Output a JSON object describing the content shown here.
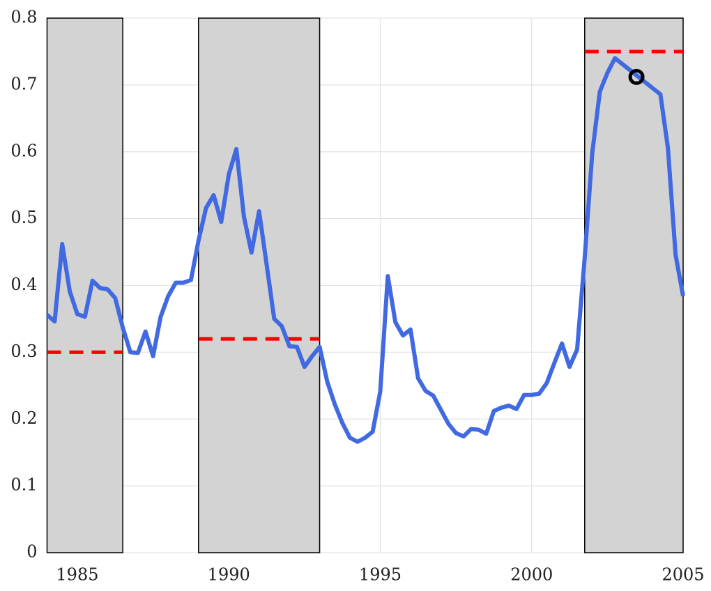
{
  "chart_data": {
    "type": "line",
    "xlim": [
      1984,
      2005
    ],
    "ylim": [
      0,
      0.8
    ],
    "xticks": [
      1985,
      1990,
      1995,
      2000,
      2005
    ],
    "yticks": [
      0,
      0.1,
      0.2,
      0.3,
      0.4,
      0.5,
      0.6,
      0.7,
      0.8
    ],
    "grid": true,
    "shaded_regions": [
      [
        1984,
        1986.5
      ],
      [
        1989,
        1993
      ],
      [
        2001.75,
        2005
      ]
    ],
    "shade_color": "#d3d3d3",
    "reference_lines": [
      {
        "x": [
          1984,
          1986.5
        ],
        "y": 0.3
      },
      {
        "x": [
          1989,
          1993
        ],
        "y": 0.32
      },
      {
        "x": [
          2001.75,
          2005
        ],
        "y": 0.75
      }
    ],
    "reference_color": "#ff0000",
    "marker": {
      "x": 2003.46,
      "y": 0.712,
      "color": "#000000"
    },
    "series": [
      {
        "color": "#4169e1",
        "x": [
          1984.0,
          1984.25,
          1984.5,
          1984.75,
          1985.0,
          1985.25,
          1985.5,
          1985.75,
          1986.0,
          1986.25,
          1986.5,
          1986.75,
          1987.0,
          1987.25,
          1987.5,
          1987.75,
          1988.0,
          1988.25,
          1988.5,
          1988.75,
          1989.0,
          1989.25,
          1989.5,
          1989.75,
          1990.0,
          1990.25,
          1990.5,
          1990.75,
          1991.0,
          1991.25,
          1991.5,
          1991.75,
          1992.0,
          1992.25,
          1992.5,
          1992.75,
          1993.0,
          1993.25,
          1993.5,
          1993.75,
          1994.0,
          1994.25,
          1994.5,
          1994.75,
          1995.0,
          1995.25,
          1995.5,
          1995.75,
          1996.0,
          1996.25,
          1996.5,
          1996.75,
          1997.0,
          1997.25,
          1997.5,
          1997.75,
          1998.0,
          1998.25,
          1998.5,
          1998.75,
          1999.0,
          1999.25,
          1999.5,
          1999.75,
          2000.0,
          2000.25,
          2000.5,
          2000.75,
          2001.0,
          2001.25,
          2001.5,
          2001.75,
          2002.0,
          2002.25,
          2002.5,
          2002.75,
          2003.0,
          2003.25,
          2003.5,
          2003.75,
          2004.0,
          2004.25,
          2004.5,
          2004.75,
          2005.0
        ],
        "values": [
          0.356,
          0.346,
          0.462,
          0.391,
          0.357,
          0.353,
          0.407,
          0.396,
          0.394,
          0.381,
          0.337,
          0.3,
          0.299,
          0.331,
          0.294,
          0.353,
          0.384,
          0.404,
          0.404,
          0.408,
          0.467,
          0.516,
          0.535,
          0.495,
          0.566,
          0.604,
          0.503,
          0.449,
          0.511,
          0.431,
          0.35,
          0.339,
          0.309,
          0.308,
          0.278,
          0.294,
          0.308,
          0.256,
          0.222,
          0.194,
          0.172,
          0.166,
          0.172,
          0.181,
          0.241,
          0.414,
          0.345,
          0.325,
          0.334,
          0.261,
          0.242,
          0.235,
          0.214,
          0.193,
          0.179,
          0.174,
          0.185,
          0.184,
          0.178,
          0.212,
          0.217,
          0.22,
          0.215,
          0.236,
          0.236,
          0.238,
          0.254,
          0.284,
          0.313,
          0.278,
          0.304,
          0.441,
          0.598,
          0.69,
          0.718,
          0.74,
          0.731,
          0.722,
          0.713,
          0.704,
          0.695,
          0.686,
          0.605,
          0.446,
          0.384
        ]
      }
    ]
  }
}
